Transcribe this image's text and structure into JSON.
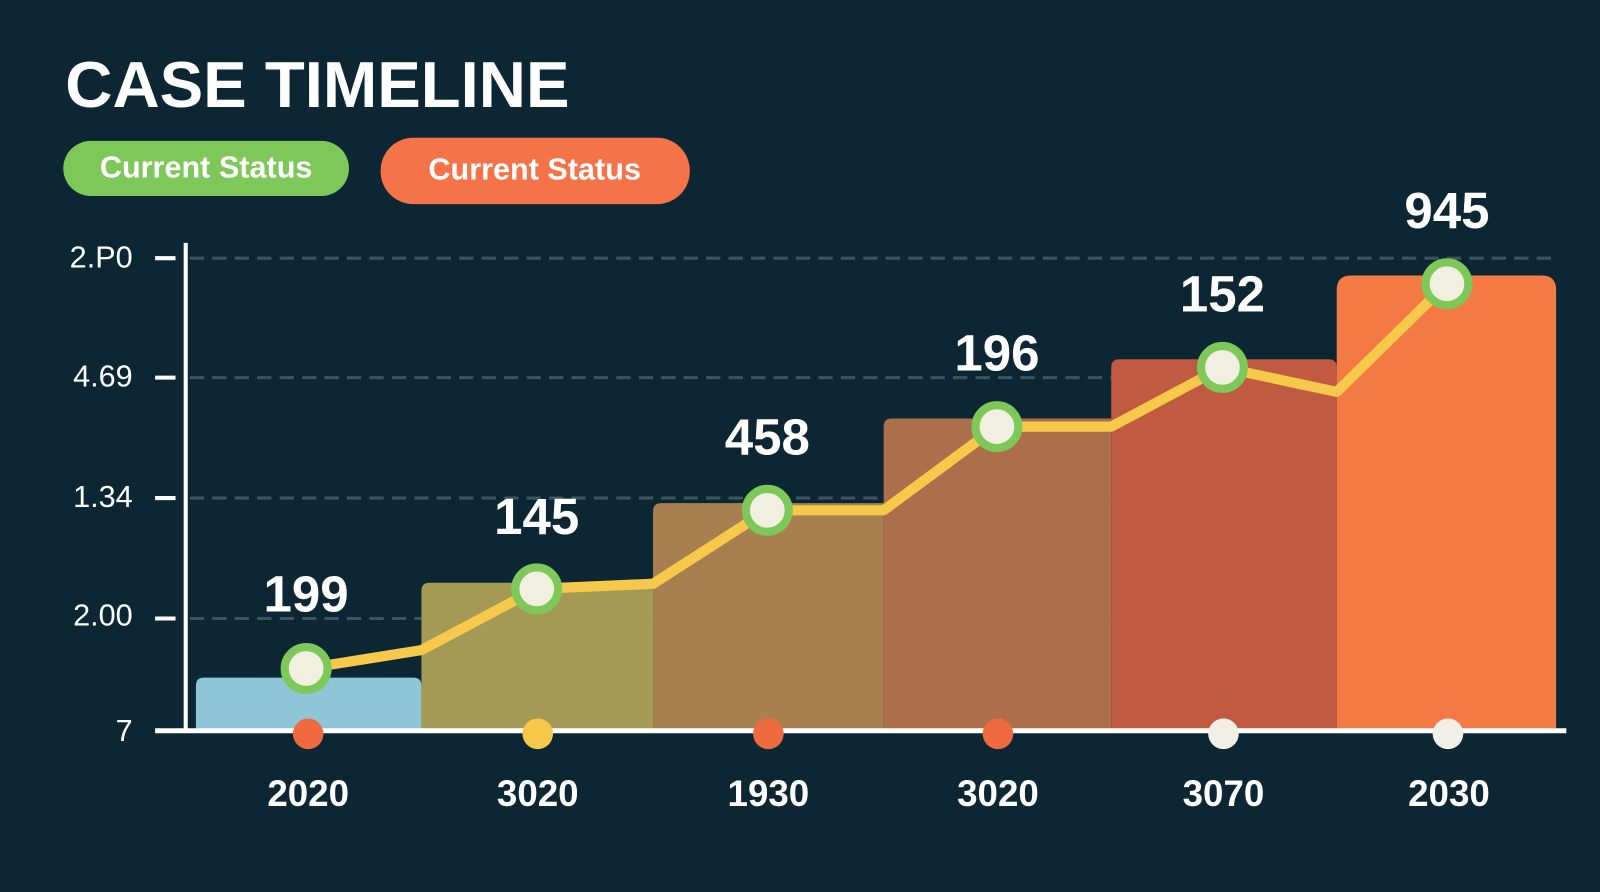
{
  "title": "CASE TIMELINE",
  "legend": [
    "Current Status",
    "Current Status"
  ],
  "y_axis_labels": [
    "2.P0",
    "4.69",
    "1.34",
    "2.00",
    "7"
  ],
  "points": [
    {
      "value_label": 199,
      "x_label": "2020"
    },
    {
      "value_label": 145,
      "x_label": "3020"
    },
    {
      "value_label": 458,
      "x_label": "1930"
    },
    {
      "value_label": 196,
      "x_label": "3020"
    },
    {
      "value_label": 152,
      "x_label": "3070"
    },
    {
      "value_label": 945,
      "x_label": "2030"
    }
  ]
}
